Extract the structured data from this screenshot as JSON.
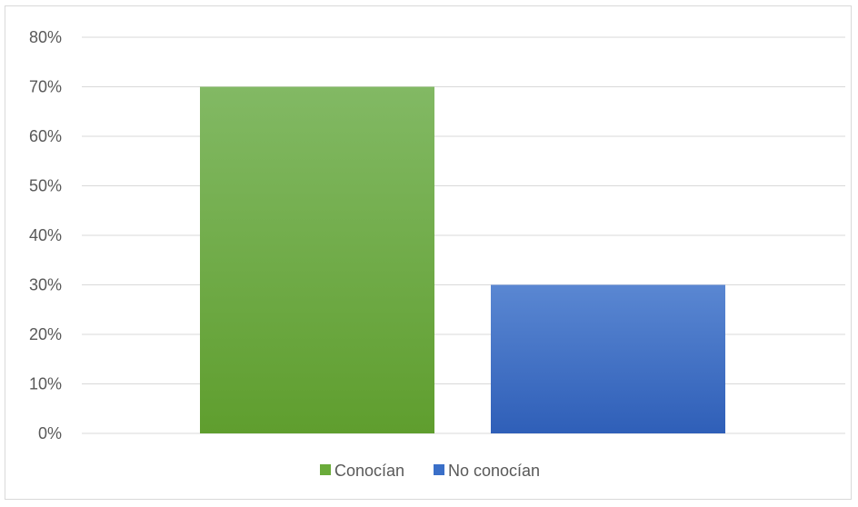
{
  "chart_data": {
    "type": "bar",
    "title": "",
    "xlabel": "",
    "ylabel": "",
    "ylim": [
      0,
      0.8
    ],
    "yticks": [
      "0%",
      "10%",
      "20%",
      "30%",
      "40%",
      "50%",
      "60%",
      "70%",
      "80%"
    ],
    "grid": true,
    "legend_position": "bottom",
    "series": [
      {
        "name": "Conocían",
        "value": 0.7,
        "color": "#6aab3a"
      },
      {
        "name": "No conocían",
        "value": 0.3,
        "color": "#3a6fc8"
      }
    ]
  }
}
